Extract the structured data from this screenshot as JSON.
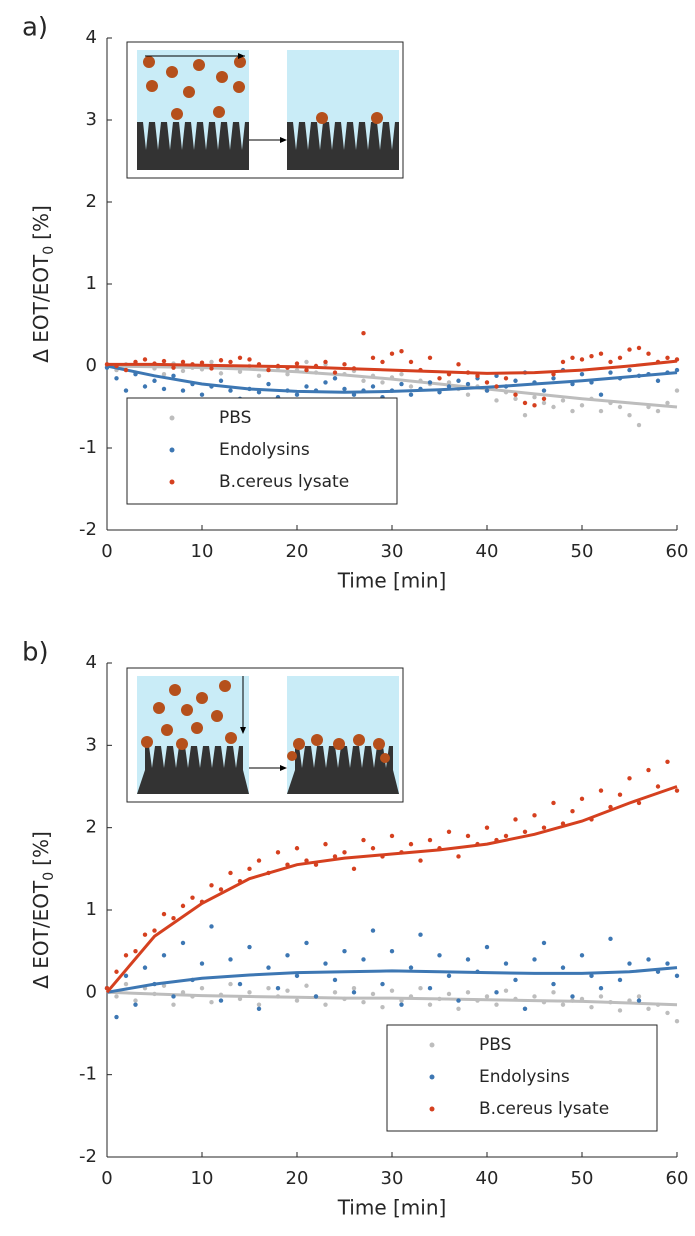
{
  "chart_data": [
    {
      "type": "scatter",
      "panel_label": "a)",
      "xlabel": "Time [min]",
      "ylabel": [
        "Δ EOT/EOT",
        "0",
        "[%]"
      ],
      "xlim": [
        0,
        60
      ],
      "ylim": [
        -2,
        4
      ],
      "xticks": [
        0,
        10,
        20,
        30,
        40,
        50,
        60
      ],
      "yticks": [
        -2,
        -1,
        0,
        1,
        2,
        3,
        4
      ],
      "legend": "lower left",
      "x": [
        0,
        1,
        2,
        3,
        4,
        5,
        6,
        7,
        8,
        9,
        10,
        11,
        12,
        13,
        14,
        15,
        16,
        17,
        18,
        19,
        20,
        21,
        22,
        23,
        24,
        25,
        26,
        27,
        28,
        29,
        30,
        31,
        32,
        33,
        34,
        35,
        36,
        37,
        38,
        39,
        40,
        41,
        42,
        43,
        44,
        45,
        46,
        47,
        48,
        49,
        50,
        51,
        52,
        53,
        54,
        55,
        56,
        57,
        58,
        59,
        60
      ],
      "fit_x": [
        0,
        5,
        10,
        15,
        20,
        25,
        30,
        35,
        40,
        45,
        50,
        55,
        60
      ],
      "series": [
        {
          "name": "PBS",
          "color": "#bdbdbd",
          "values": [
            0,
            -0.05,
            0.02,
            -0.08,
            0.01,
            -0.03,
            -0.1,
            0.03,
            -0.06,
            -0.02,
            -0.04,
            0.05,
            -0.09,
            -0.01,
            -0.07,
            0,
            -0.12,
            -0.04,
            -0.02,
            -0.1,
            -0.05,
            0.05,
            -0.08,
            0.02,
            -0.15,
            -0.1,
            -0.06,
            -0.18,
            -0.12,
            -0.2,
            -0.14,
            -0.1,
            -0.25,
            -0.18,
            -0.22,
            -0.3,
            -0.2,
            -0.28,
            -0.35,
            -0.25,
            -0.3,
            -0.42,
            -0.32,
            -0.4,
            -0.6,
            -0.38,
            -0.45,
            -0.5,
            -0.42,
            -0.55,
            -0.48,
            -0.4,
            -0.55,
            -0.45,
            -0.5,
            -0.6,
            -0.72,
            -0.5,
            -0.55,
            -0.45,
            -0.3
          ],
          "fit": [
            0,
            -0.01,
            -0.02,
            -0.04,
            -0.07,
            -0.11,
            -0.16,
            -0.22,
            -0.28,
            -0.34,
            -0.4,
            -0.45,
            -0.5
          ]
        },
        {
          "name": "Endolysins",
          "color": "#3d77b3",
          "values": [
            -0.02,
            -0.15,
            -0.3,
            -0.1,
            -0.25,
            -0.18,
            -0.28,
            -0.12,
            -0.3,
            -0.22,
            -0.35,
            -0.25,
            -0.18,
            -0.3,
            -0.4,
            -0.28,
            -0.32,
            -0.22,
            -0.38,
            -0.3,
            -0.35,
            -0.25,
            -0.3,
            -0.2,
            -0.15,
            -0.28,
            -0.35,
            -0.3,
            -0.25,
            -0.38,
            -0.3,
            -0.22,
            -0.35,
            -0.28,
            -0.2,
            -0.32,
            -0.25,
            -0.18,
            -0.22,
            -0.15,
            -0.3,
            -0.12,
            -0.25,
            -0.18,
            -0.08,
            -0.2,
            -0.3,
            -0.15,
            -0.05,
            -0.22,
            -0.1,
            -0.2,
            -0.35,
            -0.08,
            -0.15,
            -0.05,
            -0.12,
            -0.1,
            -0.18,
            -0.08,
            -0.05
          ],
          "fit": [
            0,
            -0.12,
            -0.22,
            -0.28,
            -0.31,
            -0.32,
            -0.31,
            -0.29,
            -0.26,
            -0.22,
            -0.18,
            -0.13,
            -0.08
          ]
        },
        {
          "name": "B.cereus lysate",
          "color": "#d5401f",
          "values": [
            0.02,
            0,
            -0.05,
            0.05,
            0.08,
            0.03,
            0.06,
            -0.02,
            0.05,
            0.02,
            0.04,
            -0.03,
            0.07,
            0.05,
            0.1,
            0.08,
            0.02,
            -0.05,
            0,
            -0.02,
            0.03,
            -0.05,
            0,
            0.05,
            -0.08,
            0.02,
            -0.03,
            0.4,
            0.1,
            0.05,
            0.15,
            0.18,
            0.05,
            -0.05,
            0.1,
            -0.15,
            -0.1,
            0.02,
            -0.08,
            -0.12,
            -0.2,
            -0.25,
            -0.15,
            -0.35,
            -0.45,
            -0.48,
            -0.4,
            -0.1,
            0.05,
            0.1,
            0.08,
            0.12,
            0.15,
            0.05,
            0.1,
            0.2,
            0.22,
            0.15,
            0.05,
            0.1,
            0.08
          ],
          "fit": [
            0.02,
            0.02,
            0.01,
            0,
            -0.01,
            -0.03,
            -0.05,
            -0.07,
            -0.09,
            -0.08,
            -0.05,
            0,
            0.06
          ]
        }
      ]
    },
    {
      "type": "scatter",
      "panel_label": "b)",
      "xlabel": "Time [min]",
      "ylabel": [
        "Δ EOT/EOT",
        "0",
        "[%]"
      ],
      "xlim": [
        0,
        60
      ],
      "ylim": [
        -2,
        4
      ],
      "xticks": [
        0,
        10,
        20,
        30,
        40,
        50,
        60
      ],
      "yticks": [
        -2,
        -1,
        0,
        1,
        2,
        3,
        4
      ],
      "legend": "lower right",
      "x": [
        0,
        1,
        2,
        3,
        4,
        5,
        6,
        7,
        8,
        9,
        10,
        11,
        12,
        13,
        14,
        15,
        16,
        17,
        18,
        19,
        20,
        21,
        22,
        23,
        24,
        25,
        26,
        27,
        28,
        29,
        30,
        31,
        32,
        33,
        34,
        35,
        36,
        37,
        38,
        39,
        40,
        41,
        42,
        43,
        44,
        45,
        46,
        47,
        48,
        49,
        50,
        51,
        52,
        53,
        54,
        55,
        56,
        57,
        58,
        59,
        60
      ],
      "fit_x": [
        0,
        5,
        10,
        15,
        20,
        25,
        30,
        35,
        40,
        45,
        50,
        55,
        60
      ],
      "series": [
        {
          "name": "PBS",
          "color": "#bdbdbd",
          "values": [
            0.05,
            -0.05,
            0.1,
            -0.1,
            0.05,
            -0.02,
            0.08,
            -0.15,
            0,
            -0.05,
            0.05,
            -0.12,
            -0.03,
            0.1,
            -0.08,
            0,
            -0.15,
            0.05,
            -0.05,
            0.02,
            -0.1,
            0.08,
            -0.05,
            -0.15,
            0,
            -0.08,
            0.05,
            -0.12,
            -0.02,
            -0.18,
            0.02,
            -0.1,
            -0.05,
            0.05,
            -0.15,
            -0.08,
            -0.02,
            -0.2,
            0,
            -0.1,
            -0.05,
            -0.15,
            0.02,
            -0.08,
            -0.2,
            -0.05,
            -0.12,
            0,
            -0.15,
            -0.1,
            -0.08,
            -0.18,
            -0.05,
            -0.12,
            -0.22,
            -0.1,
            -0.05,
            -0.2,
            -0.15,
            -0.25,
            -0.35
          ],
          "fit": [
            0,
            -0.02,
            -0.04,
            -0.05,
            -0.06,
            -0.07,
            -0.07,
            -0.08,
            -0.09,
            -0.1,
            -0.11,
            -0.13,
            -0.15
          ]
        },
        {
          "name": "Endolysins",
          "color": "#3d77b3",
          "values": [
            0.05,
            -0.3,
            0.2,
            -0.15,
            0.3,
            0.1,
            0.45,
            -0.05,
            0.6,
            0.15,
            0.35,
            0.8,
            -0.1,
            0.4,
            0.1,
            0.55,
            -0.2,
            0.3,
            0.05,
            0.45,
            0.2,
            0.6,
            -0.05,
            0.35,
            0.15,
            0.5,
            0,
            0.4,
            0.75,
            0.1,
            0.5,
            -0.15,
            0.3,
            0.7,
            0.05,
            0.45,
            0.2,
            -0.1,
            0.4,
            0.25,
            0.55,
            0,
            0.35,
            0.15,
            -0.2,
            0.4,
            0.6,
            0.1,
            0.3,
            -0.05,
            0.45,
            0.2,
            0.05,
            0.65,
            0.15,
            0.35,
            -0.1,
            0.4,
            0.25,
            0.35,
            0.2
          ],
          "fit": [
            0,
            0.1,
            0.17,
            0.21,
            0.24,
            0.25,
            0.26,
            0.25,
            0.24,
            0.23,
            0.23,
            0.25,
            0.3
          ]
        },
        {
          "name": "B.cereus lysate",
          "color": "#d5401f",
          "values": [
            0.05,
            0.25,
            0.45,
            0.5,
            0.7,
            0.75,
            0.95,
            0.9,
            1.05,
            1.15,
            1.1,
            1.3,
            1.25,
            1.45,
            1.35,
            1.5,
            1.6,
            1.45,
            1.7,
            1.55,
            1.75,
            1.6,
            1.55,
            1.8,
            1.65,
            1.7,
            1.5,
            1.85,
            1.75,
            1.65,
            1.9,
            1.7,
            1.8,
            1.6,
            1.85,
            1.75,
            1.95,
            1.65,
            1.9,
            1.8,
            2,
            1.85,
            1.9,
            2.1,
            1.95,
            2.15,
            2,
            2.3,
            2.05,
            2.2,
            2.35,
            2.1,
            2.45,
            2.25,
            2.4,
            2.6,
            2.3,
            2.7,
            2.5,
            2.8,
            2.45
          ],
          "fit": [
            0,
            0.68,
            1.08,
            1.38,
            1.55,
            1.63,
            1.68,
            1.73,
            1.8,
            1.92,
            2.08,
            2.3,
            2.5
          ]
        }
      ]
    }
  ]
}
